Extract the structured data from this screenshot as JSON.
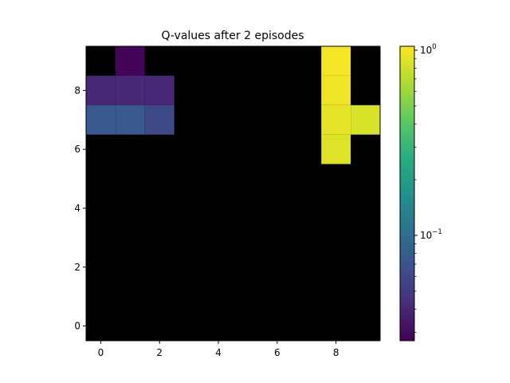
{
  "chart_data": {
    "type": "heatmap",
    "title": "Q-values after 2 episodes",
    "xlabel": "",
    "ylabel": "",
    "x_range": [
      -0.5,
      9.5
    ],
    "y_range": [
      -0.5,
      9.5
    ],
    "x_ticks": [
      0,
      2,
      4,
      6,
      8
    ],
    "y_ticks": [
      0,
      2,
      4,
      6,
      8
    ],
    "color_scale": "log",
    "colormap": "viridis",
    "color_range": [
      0.027,
      1.05
    ],
    "background_color": "#000000",
    "colorbar_ticks": [
      {
        "value": 1,
        "label": "10^0"
      },
      {
        "value": 0.1,
        "label": "10^−1"
      }
    ],
    "cells": [
      {
        "x": 1,
        "y": 9,
        "value": 0.028
      },
      {
        "x": 8,
        "y": 9,
        "value": 1.0
      },
      {
        "x": 0,
        "y": 8,
        "value": 0.04
      },
      {
        "x": 1,
        "y": 8,
        "value": 0.04
      },
      {
        "x": 2,
        "y": 8,
        "value": 0.04
      },
      {
        "x": 8,
        "y": 8,
        "value": 0.97
      },
      {
        "x": 0,
        "y": 7,
        "value": 0.075
      },
      {
        "x": 1,
        "y": 7,
        "value": 0.075
      },
      {
        "x": 2,
        "y": 7,
        "value": 0.06
      },
      {
        "x": 8,
        "y": 7,
        "value": 0.92
      },
      {
        "x": 9,
        "y": 7,
        "value": 0.85
      },
      {
        "x": 8,
        "y": 6,
        "value": 0.88
      }
    ]
  }
}
